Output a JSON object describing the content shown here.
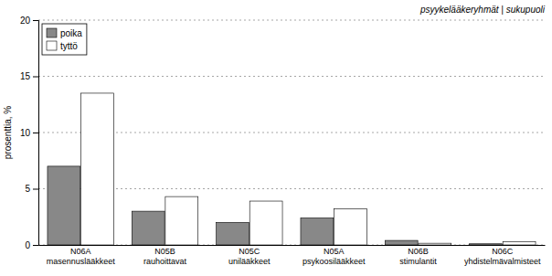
{
  "chart_data": {
    "type": "bar",
    "categories": [
      "N06A\nmasennuslääkkeet",
      "N05B\nrauhoittavat",
      "N05C\nunilääkkeet",
      "N05A\npsykoosilääkkeet",
      "N06B\nstimulantit",
      "N06C\nyhdistelmävalmisteet"
    ],
    "series": [
      {
        "name": "poika",
        "color": "#888888",
        "values": [
          7.0,
          3.0,
          2.0,
          2.4,
          0.4,
          0.1
        ]
      },
      {
        "name": "tyttö",
        "color": "#ffffff",
        "values": [
          13.5,
          4.3,
          3.9,
          3.2,
          0.15,
          0.3
        ]
      }
    ],
    "ylabel": "prosenttia, %",
    "annotations": [
      "psyykelääkeryhmät | sukupuoli"
    ],
    "ylim": [
      0,
      20
    ],
    "yticks": [
      0,
      5,
      10,
      15,
      20
    ],
    "grid": true,
    "legend": "upper left"
  }
}
